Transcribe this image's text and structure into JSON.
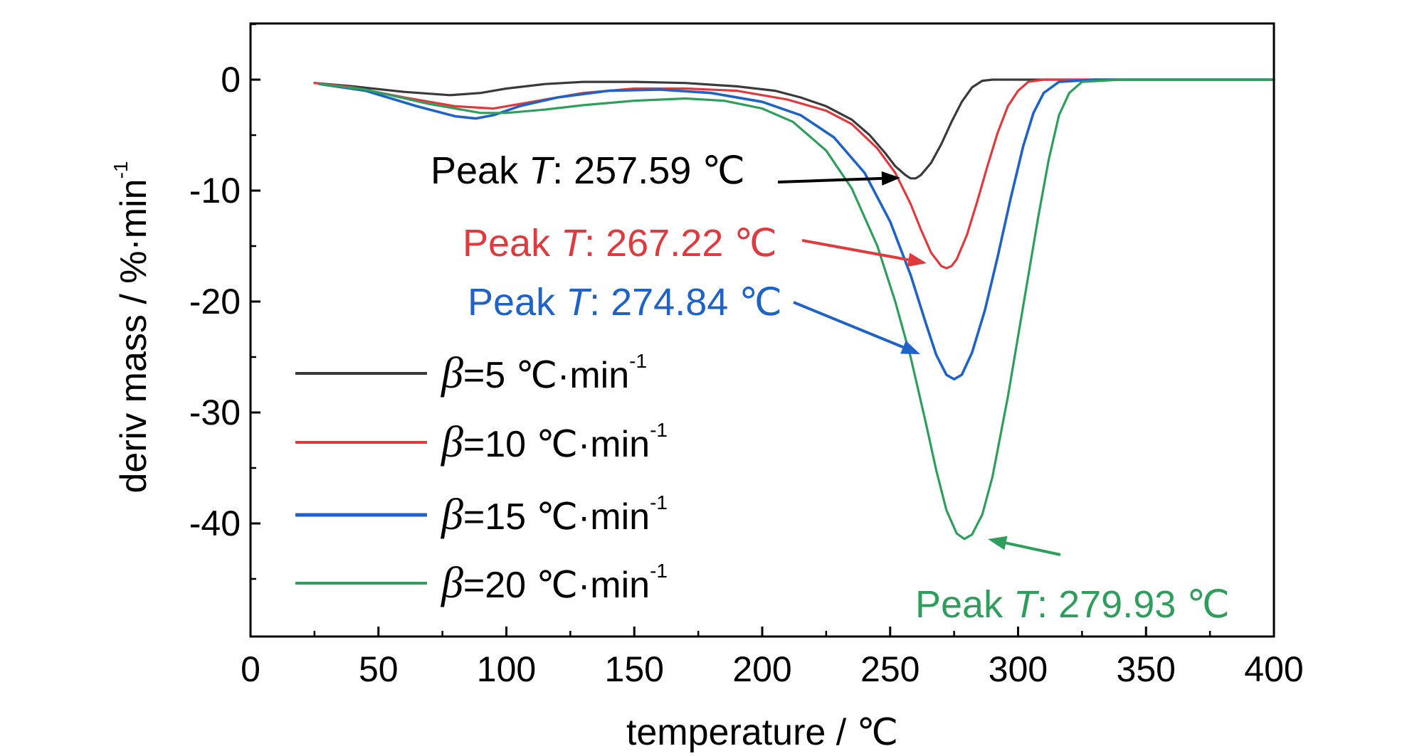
{
  "chart_data": {
    "type": "line",
    "xlabel": "temperature / ℃",
    "ylabel": "deriv mass / %·min",
    "ylabel_sup": "-1",
    "xlim": [
      0,
      400
    ],
    "ylim": [
      -50,
      5
    ],
    "xticks": [
      0,
      50,
      100,
      150,
      200,
      250,
      300,
      350,
      400
    ],
    "xtick_labels": [
      "0",
      "50",
      "100",
      "150",
      "200",
      "250",
      "300",
      "350",
      "400"
    ],
    "yticks": [
      0,
      -10,
      -20,
      -30,
      -40
    ],
    "ytick_labels": [
      "0",
      "-10",
      "-20",
      "-30",
      "-40"
    ],
    "grid": false,
    "legend_position": "lower-left",
    "series": [
      {
        "name": "β=5 ℃·min-1",
        "legend_beta": "β",
        "legend_rest": "=5  ℃·min",
        "legend_sup": "-1",
        "color": "#3a3a3a",
        "x": [
          25,
          40,
          60,
          78,
          90,
          100,
          115,
          130,
          150,
          170,
          190,
          205,
          215,
          225,
          235,
          242,
          248,
          252,
          256,
          258,
          260,
          262,
          266,
          270,
          274,
          278,
          282,
          286,
          290,
          300,
          320,
          360,
          400
        ],
        "y": [
          -0.3,
          -0.6,
          -1.1,
          -1.4,
          -1.2,
          -0.8,
          -0.4,
          -0.2,
          -0.2,
          -0.3,
          -0.6,
          -1.0,
          -1.6,
          -2.4,
          -3.6,
          -5.0,
          -6.6,
          -7.8,
          -8.6,
          -8.9,
          -8.9,
          -8.6,
          -7.5,
          -5.8,
          -3.8,
          -2.0,
          -0.7,
          -0.1,
          0,
          0,
          0,
          0,
          0
        ]
      },
      {
        "name": "β=10 ℃·min-1",
        "legend_beta": "β",
        "legend_rest": "=10  ℃·min",
        "legend_sup": "-1",
        "color": "#e0393e",
        "x": [
          25,
          40,
          60,
          80,
          95,
          110,
          130,
          150,
          170,
          190,
          210,
          225,
          235,
          245,
          252,
          258,
          262,
          266,
          270,
          272,
          274,
          276,
          280,
          284,
          288,
          292,
          296,
          300,
          304,
          310,
          330,
          360,
          400
        ],
        "y": [
          -0.3,
          -0.7,
          -1.6,
          -2.4,
          -2.6,
          -2.0,
          -1.2,
          -0.8,
          -0.8,
          -1.0,
          -1.8,
          -2.8,
          -4.0,
          -6.2,
          -8.4,
          -11.2,
          -13.5,
          -15.6,
          -16.8,
          -17.0,
          -16.8,
          -16.2,
          -14.0,
          -11.0,
          -7.8,
          -4.8,
          -2.4,
          -1.0,
          -0.2,
          0,
          0,
          0,
          0
        ]
      },
      {
        "name": "β=15 ℃·min-1",
        "legend_beta": "β",
        "legend_rest": "=15  ℃·min",
        "legend_sup": "-1",
        "color": "#1f63c6",
        "x": [
          27,
          45,
          65,
          80,
          88,
          95,
          105,
          120,
          140,
          160,
          180,
          200,
          215,
          228,
          240,
          250,
          258,
          264,
          268,
          272,
          275,
          278,
          282,
          287,
          292,
          297,
          302,
          306,
          310,
          316,
          330,
          360,
          400
        ],
        "y": [
          -0.4,
          -1.0,
          -2.4,
          -3.3,
          -3.5,
          -3.2,
          -2.4,
          -1.6,
          -1.0,
          -0.9,
          -1.2,
          -2.0,
          -3.2,
          -5.2,
          -8.4,
          -12.8,
          -17.6,
          -22.0,
          -24.8,
          -26.6,
          -27.0,
          -26.6,
          -24.6,
          -20.8,
          -16.0,
          -10.8,
          -6.0,
          -3.0,
          -1.2,
          -0.2,
          0,
          0,
          0
        ]
      },
      {
        "name": "β=20 ℃·min-1",
        "legend_beta": "β",
        "legend_rest": "=20  ℃·min",
        "legend_sup": "-1",
        "color": "#2e9e5c",
        "x": [
          27,
          45,
          70,
          90,
          100,
          115,
          130,
          150,
          170,
          185,
          200,
          212,
          225,
          235,
          245,
          252,
          258,
          264,
          268,
          272,
          276,
          279,
          282,
          286,
          290,
          296,
          302,
          308,
          312,
          316,
          320,
          325,
          340,
          370,
          400
        ],
        "y": [
          -0.4,
          -0.9,
          -2.2,
          -3.0,
          -3.0,
          -2.7,
          -2.3,
          -1.9,
          -1.7,
          -1.9,
          -2.6,
          -3.8,
          -6.4,
          -9.8,
          -15.0,
          -20.0,
          -25.0,
          -31.0,
          -35.2,
          -38.8,
          -40.9,
          -41.4,
          -41.0,
          -39.2,
          -35.8,
          -28.6,
          -20.4,
          -12.2,
          -7.2,
          -3.2,
          -1.2,
          -0.2,
          0,
          0,
          0
        ]
      }
    ],
    "annotations": [
      {
        "prefix": "Peak ",
        "italic": "T",
        "suffix": ": 257.59 ℃",
        "color": "#000000",
        "x": 257.59,
        "y": -8.9
      },
      {
        "prefix": "Peak ",
        "italic": "T",
        "suffix": ": 267.22 ℃",
        "color": "#e0393e",
        "x": 267.22,
        "y": -17.0
      },
      {
        "prefix": "Peak ",
        "italic": "T",
        "suffix": ": 274.84 ℃",
        "color": "#1f63c6",
        "x": 274.84,
        "y": -27.0
      },
      {
        "prefix": "Peak ",
        "italic": "T",
        "suffix": ": 279.93 ℃",
        "color": "#2e9e5c",
        "x": 279.93,
        "y": -41.4
      }
    ]
  }
}
